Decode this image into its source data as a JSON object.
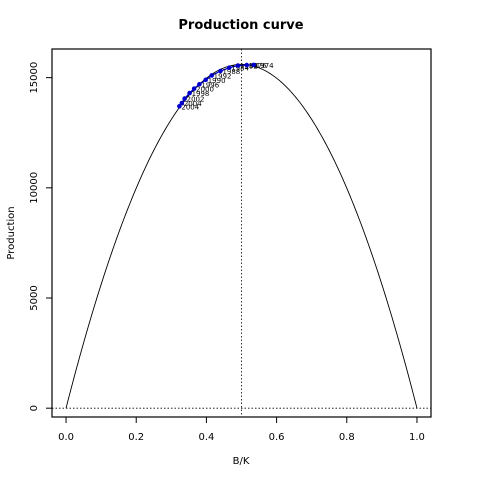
{
  "chart_data": {
    "type": "line",
    "title": "Production curve",
    "xlabel": "B/K",
    "ylabel": "Production",
    "xlim": [
      -0.04,
      1.04
    ],
    "ylim": [
      -400,
      16300
    ],
    "xticks": [
      "0.0",
      "0.2",
      "0.4",
      "0.6",
      "0.8",
      "1.0"
    ],
    "xtick_values": [
      0,
      0.2,
      0.4,
      0.6,
      0.8,
      1.0
    ],
    "yticks": [
      "0",
      "5000",
      "10000",
      "15000"
    ],
    "ytick_values": [
      0,
      5000,
      10000,
      15000
    ],
    "curve": {
      "r": 4,
      "K": 15600,
      "color": "#000000"
    },
    "reference_lines": {
      "vertical_x": 0.5,
      "horizontal_y": 0
    },
    "series": [
      {
        "color": "#0000cc",
        "points": [
          {
            "x": 0.323,
            "y": 13700,
            "label": "2004"
          },
          {
            "x": 0.33,
            "y": 13850,
            "label": "2004"
          },
          {
            "x": 0.338,
            "y": 14050,
            "label": "2002"
          },
          {
            "x": 0.352,
            "y": 14300,
            "label": "1998"
          },
          {
            "x": 0.365,
            "y": 14500,
            "label": "2000"
          },
          {
            "x": 0.38,
            "y": 14700,
            "label": "1996"
          },
          {
            "x": 0.398,
            "y": 14900,
            "label": "1990"
          },
          {
            "x": 0.415,
            "y": 15100,
            "label": "1992"
          },
          {
            "x": 0.44,
            "y": 15300,
            "label": "1988"
          },
          {
            "x": 0.465,
            "y": 15450,
            "label": "1984"
          },
          {
            "x": 0.49,
            "y": 15550,
            "label": "1982"
          },
          {
            "x": 0.515,
            "y": 15570,
            "label": "1976"
          },
          {
            "x": 0.535,
            "y": 15580,
            "label": "1974"
          }
        ]
      }
    ]
  }
}
